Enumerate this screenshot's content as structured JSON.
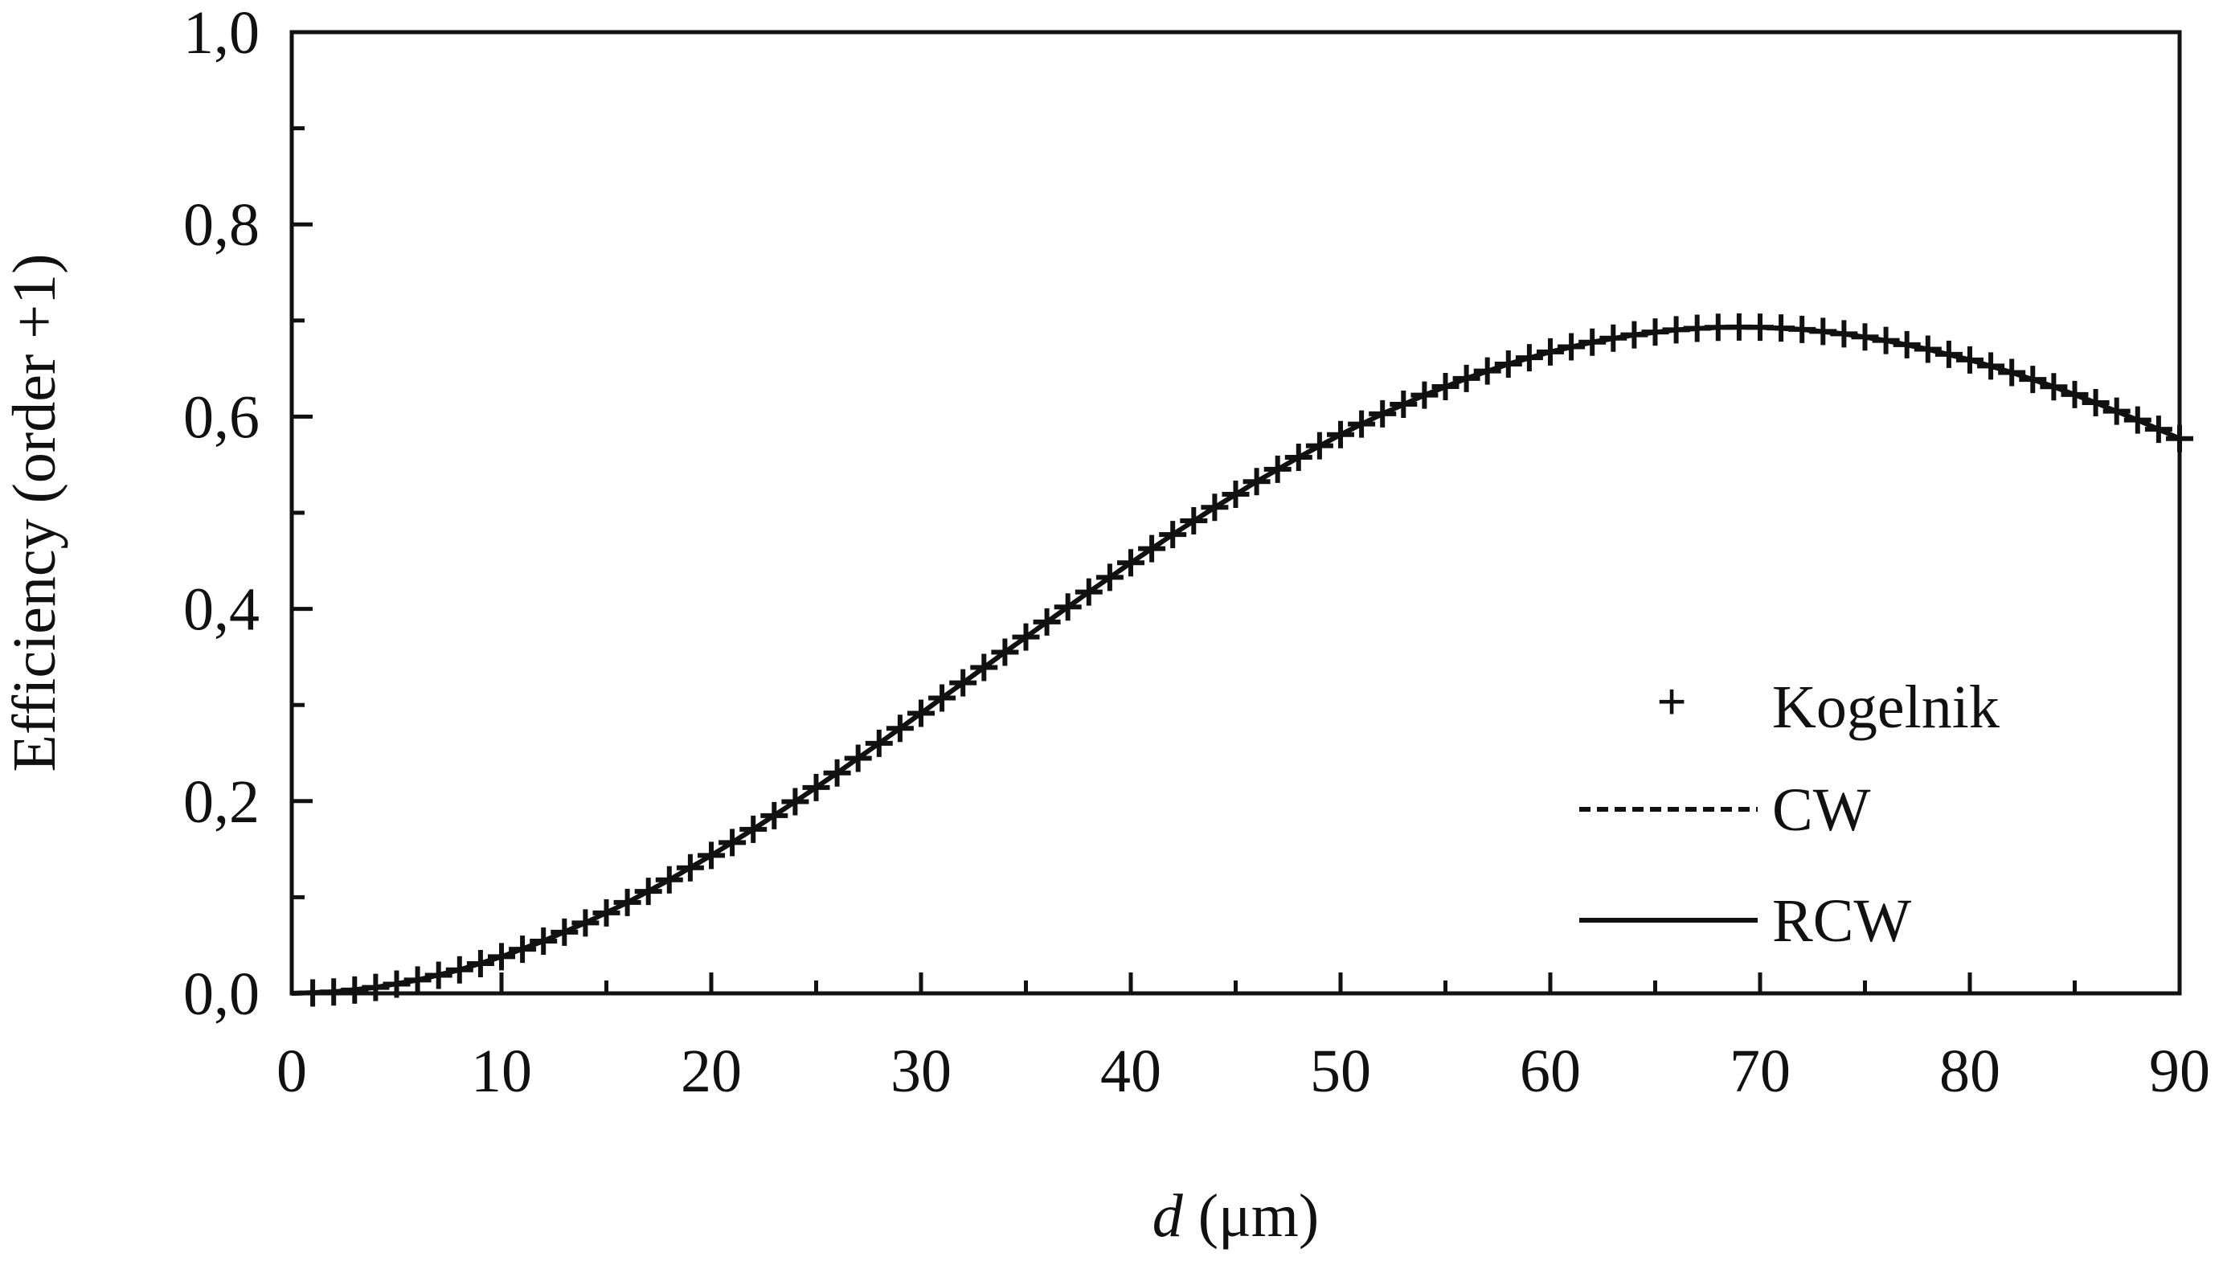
{
  "chart_data": {
    "type": "line",
    "xlabel_italic": "d",
    "xlabel_rest": " (μm)",
    "ylabel": "Efficiency (order +1)",
    "xlim": [
      0,
      90
    ],
    "ylim": [
      0.0,
      1.0
    ],
    "xticks": [
      "0",
      "10",
      "20",
      "30",
      "40",
      "50",
      "60",
      "70",
      "80",
      "90"
    ],
    "yticks": [
      "0,0",
      "0,2",
      "0,4",
      "0,6",
      "0,8",
      "1,0"
    ],
    "grid": false,
    "legend_position": "lower-right",
    "series": [
      {
        "name": "Kogelnik",
        "style": "plus-markers",
        "x": [
          1,
          2,
          3,
          4,
          5,
          6,
          7,
          8,
          9,
          10,
          11,
          12,
          13,
          14,
          15,
          16,
          17,
          18,
          19,
          20,
          21,
          22,
          23,
          24,
          25,
          26,
          27,
          28,
          29,
          30,
          31,
          32,
          33,
          34,
          35,
          36,
          37,
          38,
          39,
          40,
          41,
          42,
          43,
          44,
          45,
          46,
          47,
          48,
          49,
          50,
          51,
          52,
          53,
          54,
          55,
          56,
          57,
          58,
          59,
          60,
          61,
          62,
          63,
          64,
          65,
          66,
          67,
          68,
          69,
          70,
          71,
          72,
          73,
          74,
          75,
          76,
          77,
          78,
          79,
          80,
          81,
          82,
          83,
          84,
          85,
          86,
          87,
          88,
          89,
          90
        ],
        "y": [
          0.0004,
          0.0015,
          0.0035,
          0.0062,
          0.0096,
          0.0139,
          0.0188,
          0.0245,
          0.0309,
          0.0381,
          0.0459,
          0.0544,
          0.0636,
          0.0733,
          0.0837,
          0.0946,
          0.1061,
          0.1181,
          0.1306,
          0.1435,
          0.1569,
          0.1707,
          0.1849,
          0.1994,
          0.2142,
          0.2293,
          0.2446,
          0.2601,
          0.2757,
          0.2914,
          0.3073,
          0.3231,
          0.339,
          0.3549,
          0.3707,
          0.3864,
          0.402,
          0.4175,
          0.4328,
          0.4479,
          0.4627,
          0.4773,
          0.4916,
          0.5056,
          0.5192,
          0.5324,
          0.5453,
          0.5577,
          0.5697,
          0.5813,
          0.5923,
          0.6029,
          0.6129,
          0.6224,
          0.6313,
          0.6397,
          0.6475,
          0.6547,
          0.6613,
          0.6673,
          0.6727,
          0.6775,
          0.6816,
          0.6851,
          0.688,
          0.6903,
          0.6919,
          0.6929,
          0.6933,
          0.693,
          0.6922,
          0.6907,
          0.6887,
          0.6861,
          0.6829,
          0.6792,
          0.6749,
          0.6701,
          0.6648,
          0.659,
          0.6527,
          0.6459,
          0.6387,
          0.6311,
          0.623,
          0.6145,
          0.6057,
          0.5965,
          0.5869,
          0.5771
        ]
      },
      {
        "name": "CW",
        "style": "dashed",
        "x": [
          0,
          2,
          4,
          6,
          8,
          10,
          12,
          14,
          16,
          18,
          20,
          22,
          24,
          26,
          28,
          30,
          32,
          34,
          36,
          38,
          40,
          42,
          44,
          46,
          48,
          50,
          52,
          54,
          56,
          58,
          60,
          62,
          64,
          66,
          68,
          70,
          72,
          74,
          76,
          78,
          80,
          82,
          84,
          86,
          88,
          90
        ],
        "y": [
          0.0,
          0.0015,
          0.0062,
          0.0139,
          0.0245,
          0.0381,
          0.0544,
          0.0733,
          0.0946,
          0.1181,
          0.1435,
          0.1707,
          0.1994,
          0.2293,
          0.2601,
          0.2914,
          0.3231,
          0.3549,
          0.3864,
          0.4175,
          0.4479,
          0.4773,
          0.5056,
          0.5324,
          0.5577,
          0.5813,
          0.6029,
          0.6224,
          0.6397,
          0.6547,
          0.6673,
          0.6775,
          0.6851,
          0.6903,
          0.6929,
          0.693,
          0.6907,
          0.6861,
          0.6792,
          0.6701,
          0.659,
          0.6459,
          0.6311,
          0.6145,
          0.5965,
          0.5771
        ]
      },
      {
        "name": "RCW",
        "style": "solid",
        "x": [
          0,
          2,
          4,
          6,
          8,
          10,
          12,
          14,
          16,
          18,
          20,
          22,
          24,
          26,
          28,
          30,
          32,
          34,
          36,
          38,
          40,
          42,
          44,
          46,
          48,
          50,
          52,
          54,
          56,
          58,
          60,
          62,
          64,
          66,
          68,
          70,
          72,
          74,
          76,
          78,
          80,
          82,
          84,
          86,
          88,
          90
        ],
        "y": [
          0.0,
          0.0015,
          0.0062,
          0.0139,
          0.0245,
          0.0381,
          0.0544,
          0.0733,
          0.0946,
          0.1181,
          0.1435,
          0.1707,
          0.1994,
          0.2293,
          0.2601,
          0.2914,
          0.3231,
          0.3549,
          0.3864,
          0.4175,
          0.4479,
          0.4773,
          0.5056,
          0.5324,
          0.5577,
          0.5813,
          0.6029,
          0.6224,
          0.6397,
          0.6547,
          0.6673,
          0.6775,
          0.6851,
          0.6903,
          0.6929,
          0.693,
          0.6907,
          0.6861,
          0.6792,
          0.6701,
          0.659,
          0.6459,
          0.6311,
          0.6145,
          0.5965,
          0.5771
        ]
      }
    ]
  }
}
